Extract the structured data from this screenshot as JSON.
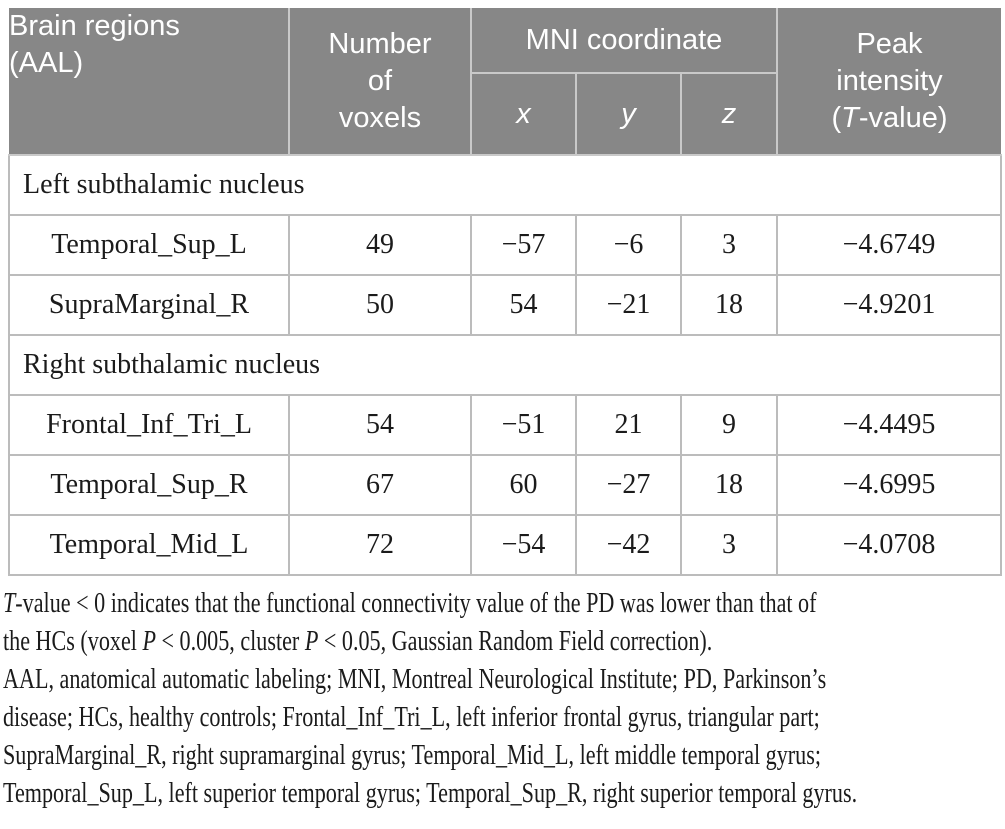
{
  "colors": {
    "header_background": "#878787",
    "header_text": "#ffffff",
    "header_divider": "#c9c9c9",
    "body_border": "#bcbcbc",
    "body_text": "#1b1b1b"
  },
  "table": {
    "header": {
      "brain_regions": {
        "line1": "Brain regions",
        "line2": "(AAL)"
      },
      "voxels": {
        "line1": "Number",
        "line2": "of",
        "line3": "voxels"
      },
      "mni": "MNI coordinate",
      "x": "x",
      "y": "y",
      "z": "z",
      "peak": {
        "line1": "Peak",
        "line2": "intensity",
        "line3_open": "(",
        "line3_t": "T",
        "line3_rest": "-value)"
      }
    },
    "sections": [
      {
        "label": "Left subthalamic nucleus",
        "rows": [
          {
            "region": "Temporal_Sup_L",
            "voxels": "49",
            "x": "−57",
            "y": "−6",
            "z": "3",
            "peak": "−4.6749"
          },
          {
            "region": "SupraMarginal_R",
            "voxels": "50",
            "x": "54",
            "y": "−21",
            "z": "18",
            "peak": "−4.9201"
          }
        ]
      },
      {
        "label": "Right subthalamic nucleus",
        "rows": [
          {
            "region": "Frontal_Inf_Tri_L",
            "voxels": "54",
            "x": "−51",
            "y": "21",
            "z": "9",
            "peak": "−4.4495"
          },
          {
            "region": "Temporal_Sup_R",
            "voxels": "67",
            "x": "60",
            "y": "−27",
            "z": "18",
            "peak": "−4.6995"
          },
          {
            "region": "Temporal_Mid_L",
            "voxels": "72",
            "x": "−54",
            "y": "−42",
            "z": "3",
            "peak": "−4.0708"
          }
        ]
      }
    ]
  },
  "footnotes": {
    "note1_lines": [
      [
        {
          "t": "T",
          "i": true
        },
        {
          "t": "-value < 0 indicates that the functional connectivity value of the PD was lower than that of"
        }
      ],
      [
        {
          "t": "the HCs (voxel "
        },
        {
          "t": "P",
          "i": true
        },
        {
          "t": " < 0.005, cluster "
        },
        {
          "t": "P",
          "i": true
        },
        {
          "t": " < 0.05, Gaussian Random Field correction)."
        }
      ]
    ],
    "note2_lines": [
      [
        {
          "t": "AAL, anatomical automatic labeling; MNI, Montreal Neurological Institute; PD, Parkinson’s"
        }
      ],
      [
        {
          "t": "disease; HCs, healthy controls; Frontal_Inf_Tri_L, left inferior frontal gyrus, triangular part;"
        }
      ],
      [
        {
          "t": "SupraMarginal_R, right supramarginal gyrus; Temporal_Mid_L, left middle temporal gyrus;"
        }
      ],
      [
        {
          "t": "Temporal_Sup_L, left superior temporal gyrus; Temporal_Sup_R, right superior temporal gyrus."
        }
      ]
    ]
  }
}
